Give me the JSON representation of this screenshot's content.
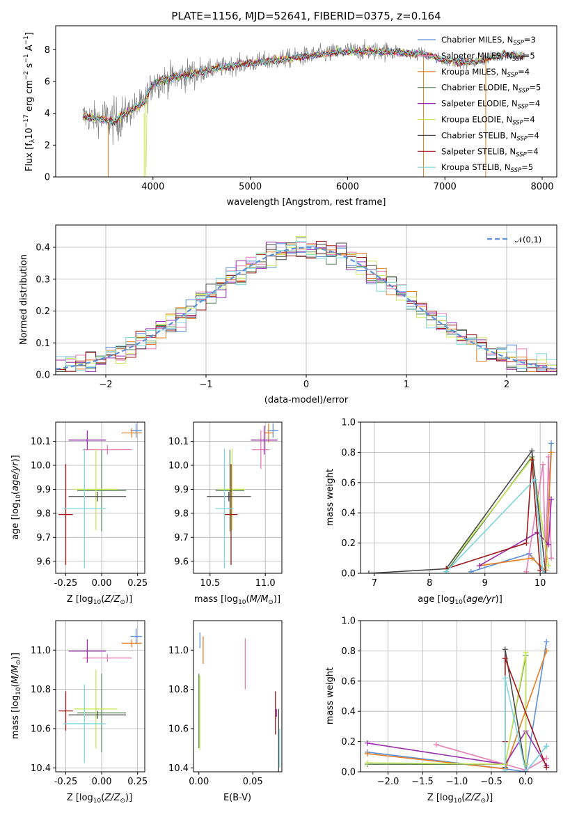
{
  "chart_data": [
    {
      "type": "line",
      "panel": "spectrum",
      "title": "PLATE=1156, MJD=52641, FIBERID=0375, z=0.164",
      "xlabel": "wavelength [Angstrom, rest frame]",
      "ylabel": "Flux [f_λ10^-17 erg cm^-2 s^-1 A^-1]",
      "xlim": [
        3000,
        8150
      ],
      "ylim": [
        0,
        9.5
      ],
      "xticks": [
        4000,
        5000,
        6000,
        7000,
        8000
      ],
      "yticks": [
        0,
        2,
        4,
        6,
        8
      ],
      "legend_position": "right",
      "observed_color": "#808080",
      "series": [
        {
          "name": "Chabrier MILES, N_SSP=3",
          "color": "#5b8fd8"
        },
        {
          "name": "Salpeter MILES, N_SSP=5",
          "color": "#e87fb5"
        },
        {
          "name": "Kroupa MILES, N_SSP=4",
          "color": "#e87d22"
        },
        {
          "name": "Chabrier ELODIE, N_SSP=5",
          "color": "#5a8a5a"
        },
        {
          "name": "Salpeter ELODIE, N_SSP=4",
          "color": "#9b2cb0"
        },
        {
          "name": "Kroupa ELODIE, N_SSP=4",
          "color": "#cbe85c"
        },
        {
          "name": "Chabrier STELIB, N_SSP=4",
          "color": "#4a4a4a"
        },
        {
          "name": "Salpeter STELIB, N_SSP=4",
          "color": "#a01818"
        },
        {
          "name": "Kroupa STELIB, N_SSP=5",
          "color": "#7fd6dc"
        }
      ],
      "continuum_x": [
        3300,
        3500,
        3600,
        3800,
        3900,
        4000,
        4200,
        4500,
        4800,
        5200,
        5600,
        6000,
        6400,
        6800,
        7000,
        7300,
        7600,
        7800
      ],
      "continuum_y": [
        3.8,
        3.6,
        3.5,
        4.3,
        4.6,
        5.9,
        6.2,
        6.6,
        7.0,
        7.3,
        7.6,
        7.9,
        7.9,
        7.7,
        7.3,
        7.2,
        7.7,
        7.6
      ]
    },
    {
      "type": "histogram",
      "panel": "residuals",
      "xlabel": "(data-model)/error",
      "ylabel": "Normed distribution",
      "xlim": [
        -2.5,
        2.5
      ],
      "ylim": [
        0,
        0.47
      ],
      "xticks": [
        -2,
        -1,
        0,
        1,
        2
      ],
      "yticks": [
        0.0,
        0.1,
        0.2,
        0.3,
        0.4
      ],
      "grid": true,
      "legend_position": "top-right",
      "reference_curve": {
        "name": "𝒩(0,1)",
        "color": "#5b8fd8",
        "style": "dashed"
      },
      "bin_edges": [
        -2.5,
        -2.4,
        -2.3,
        -2.2,
        -2.1,
        -2.0,
        -1.9,
        -1.8,
        -1.7,
        -1.6,
        -1.5,
        -1.4,
        -1.3,
        -1.2,
        -1.1,
        -1.0,
        -0.9,
        -0.8,
        -0.7,
        -0.6,
        -0.5,
        -0.4,
        -0.3,
        -0.2,
        -0.1,
        0.0,
        0.1,
        0.2,
        0.3,
        0.4,
        0.5,
        0.6,
        0.7,
        0.8,
        0.9,
        1.0,
        1.1,
        1.2,
        1.3,
        1.4,
        1.5,
        1.6,
        1.7,
        1.8,
        1.9,
        2.0,
        2.1,
        2.2,
        2.3,
        2.4,
        2.5
      ]
    },
    {
      "type": "error_bar",
      "panel": "age_vs_Z",
      "xlabel": "Z [log10(Z/Z⊙)]",
      "ylabel": "age  [log10(age/yr)]",
      "xlim": [
        -0.32,
        0.3
      ],
      "ylim": [
        9.55,
        10.18
      ],
      "xticks": [
        "-0.25",
        "0.00",
        "0.25"
      ],
      "yticks": [
        "9.6",
        "9.7",
        "9.8",
        "9.9",
        "10.0",
        "10.1"
      ],
      "grid": true,
      "points": [
        {
          "x": 0.24,
          "y": 10.145,
          "xerr": 0.04,
          "yerr": 0.03,
          "color": "#5b8fd8"
        },
        {
          "x": 0.04,
          "y": 10.065,
          "xerr": 0.17,
          "yerr": 0.0,
          "color": "#e87fb5"
        },
        {
          "x": 0.21,
          "y": 10.135,
          "xerr": 0.07,
          "yerr": 0.0,
          "color": "#e87d22"
        },
        {
          "x": 0.0,
          "y": 9.895,
          "xerr": 0.17,
          "yerr": 0.17,
          "color": "#5a8a5a"
        },
        {
          "x": -0.1,
          "y": 10.105,
          "xerr": 0.13,
          "yerr": 0.04,
          "color": "#9b2cb0"
        },
        {
          "x": -0.04,
          "y": 9.9,
          "xerr": 0.15,
          "yerr": 0.17,
          "color": "#cbe85c"
        },
        {
          "x": -0.03,
          "y": 9.87,
          "xerr": 0.2,
          "yerr": 0.0,
          "color": "#4a4a4a"
        },
        {
          "x": -0.25,
          "y": 9.795,
          "xerr": 0.05,
          "yerr": 0.21,
          "color": "#a01818"
        },
        {
          "x": -0.12,
          "y": 9.82,
          "xerr": 0.15,
          "yerr": 0.25,
          "color": "#7fd6dc"
        }
      ]
    },
    {
      "type": "error_bar",
      "panel": "age_vs_mass",
      "xlabel": "mass [log10(M/M⊙)]",
      "ylabel": "",
      "xlim": [
        10.35,
        11.15
      ],
      "ylim": [
        9.55,
        10.18
      ],
      "xticks": [
        "10.5",
        "11.0"
      ],
      "yticks": [
        "9.6",
        "9.7",
        "9.8",
        "9.9",
        "10.0",
        "10.1"
      ],
      "grid": true,
      "points": [
        {
          "x": 11.07,
          "y": 10.145,
          "xerr": 0.05,
          "yerr": 0.03,
          "color": "#5b8fd8"
        },
        {
          "x": 10.96,
          "y": 10.065,
          "xerr": 0.08,
          "yerr": 0.08,
          "color": "#e87fb5"
        },
        {
          "x": 11.03,
          "y": 10.135,
          "xerr": 0.04,
          "yerr": 0.04,
          "color": "#e87d22"
        },
        {
          "x": 10.68,
          "y": 9.895,
          "xerr": 0.13,
          "yerr": 0.17,
          "color": "#5a8a5a"
        },
        {
          "x": 10.99,
          "y": 10.105,
          "xerr": 0.12,
          "yerr": 0.06,
          "color": "#9b2cb0"
        },
        {
          "x": 10.7,
          "y": 9.9,
          "xerr": 0.12,
          "yerr": 0.17,
          "color": "#cbe85c"
        },
        {
          "x": 10.67,
          "y": 9.87,
          "xerr": 0.2,
          "yerr": 0.0,
          "color": "#4a4a4a"
        },
        {
          "x": 10.69,
          "y": 9.795,
          "xerr": 0.06,
          "yerr": 0.21,
          "color": "#a01818"
        },
        {
          "x": 10.63,
          "y": 9.82,
          "xerr": 0.08,
          "yerr": 0.25,
          "color": "#7fd6dc"
        }
      ]
    },
    {
      "type": "line",
      "panel": "weight_vs_age",
      "xlabel": "age  [log10(age/yr)]",
      "ylabel": "mass weight",
      "xlim": [
        6.75,
        10.3
      ],
      "ylim": [
        0,
        1.0
      ],
      "xticks": [
        "7",
        "8",
        "9",
        "10"
      ],
      "yticks": [
        "0.0",
        "0.2",
        "0.4",
        "0.6",
        "0.8",
        "1.0"
      ],
      "grid": true,
      "series": [
        {
          "color": "#5b8fd8",
          "x": [
            8.75,
            9.8,
            10.1,
            10.2
          ],
          "y": [
            0.01,
            0.13,
            0.0,
            0.86
          ]
        },
        {
          "color": "#e87fb5",
          "x": [
            9.75,
            10.05,
            10.1,
            10.15,
            10.2
          ],
          "y": [
            0.01,
            0.72,
            0.08,
            0.77,
            0.1
          ]
        },
        {
          "color": "#e87d22",
          "x": [
            8.9,
            9.85,
            10.1,
            10.2
          ],
          "y": [
            0.05,
            0.1,
            0.02,
            0.8
          ]
        },
        {
          "color": "#5a8a5a",
          "x": [
            8.3,
            9.85,
            10.15
          ],
          "y": [
            0.01,
            0.77,
            0.05
          ]
        },
        {
          "color": "#9b2cb0",
          "x": [
            8.9,
            9.95,
            10.15,
            10.2
          ],
          "y": [
            0.05,
            0.27,
            0.19,
            0.49
          ]
        },
        {
          "color": "#cbe85c",
          "x": [
            8.3,
            9.85,
            10.15
          ],
          "y": [
            0.03,
            0.76,
            0.05
          ]
        },
        {
          "color": "#4a4a4a",
          "x": [
            6.9,
            8.3,
            9.85,
            10.1
          ],
          "y": [
            0.0,
            0.03,
            0.81,
            0.0
          ]
        },
        {
          "color": "#a01818",
          "x": [
            8.3,
            9.75,
            9.85,
            10.0
          ],
          "y": [
            0.03,
            0.2,
            0.75,
            0.02
          ]
        },
        {
          "color": "#7fd6dc",
          "x": [
            8.3,
            9.9,
            10.05
          ],
          "y": [
            0.01,
            0.62,
            0.0
          ]
        }
      ]
    },
    {
      "type": "error_bar",
      "panel": "mass_vs_Z",
      "xlabel": "Z [log10(Z/Z⊙)]",
      "ylabel": "mass [log10(M/M⊙)]",
      "xlim": [
        -0.32,
        0.3
      ],
      "ylim": [
        10.38,
        11.15
      ],
      "xticks": [
        "-0.25",
        "0.00",
        "0.25"
      ],
      "yticks": [
        "10.4",
        "10.6",
        "10.8",
        "11.0"
      ],
      "grid": true,
      "points": [
        {
          "x": 0.24,
          "y": 11.07,
          "xerr": 0.04,
          "yerr": 0.04,
          "color": "#5b8fd8"
        },
        {
          "x": 0.04,
          "y": 10.96,
          "xerr": 0.17,
          "yerr": 0.0,
          "color": "#e87fb5"
        },
        {
          "x": 0.21,
          "y": 11.035,
          "xerr": 0.07,
          "yerr": 0.0,
          "color": "#e87d22"
        },
        {
          "x": 0.0,
          "y": 10.68,
          "xerr": 0.17,
          "yerr": 0.2,
          "color": "#5a8a5a"
        },
        {
          "x": -0.1,
          "y": 10.995,
          "xerr": 0.13,
          "yerr": 0.06,
          "color": "#9b2cb0"
        },
        {
          "x": -0.04,
          "y": 10.7,
          "xerr": 0.15,
          "yerr": 0.2,
          "color": "#cbe85c"
        },
        {
          "x": -0.03,
          "y": 10.67,
          "xerr": 0.2,
          "yerr": 0.0,
          "color": "#4a4a4a"
        },
        {
          "x": -0.25,
          "y": 10.69,
          "xerr": 0.05,
          "yerr": 0.1,
          "color": "#a01818"
        },
        {
          "x": -0.12,
          "y": 10.625,
          "xerr": 0.15,
          "yerr": 0.2,
          "color": "#7fd6dc"
        }
      ]
    },
    {
      "type": "error_bar",
      "panel": "mass_vs_EBV",
      "xlabel": "E(B-V)",
      "ylabel": "",
      "xlim": [
        -0.005,
        0.077
      ],
      "ylim": [
        10.38,
        11.15
      ],
      "xticks": [
        "0.00",
        "0.05"
      ],
      "yticks": [
        "10.4",
        "10.6",
        "10.8",
        "11.0"
      ],
      "grid": false,
      "points": [
        {
          "x": 0.001,
          "y": 11.05,
          "xerr": 0,
          "yerr": 0.04,
          "color": "#5b8fd8"
        },
        {
          "x": 0.043,
          "y": 10.93,
          "xerr": 0,
          "yerr": 0.13,
          "color": "#e87fb5"
        },
        {
          "x": 0.004,
          "y": 11.0,
          "xerr": 0,
          "yerr": 0.07,
          "color": "#e87d22"
        },
        {
          "x": 0.0,
          "y": 10.69,
          "xerr": 0,
          "yerr": 0.19,
          "color": "#5a8a5a"
        },
        {
          "x": 0.072,
          "y": 10.68,
          "xerr": 0,
          "yerr": 0.0,
          "color": "#9b2cb0"
        },
        {
          "x": 0.001,
          "y": 10.68,
          "xerr": 0,
          "yerr": 0.19,
          "color": "#cbe85c"
        },
        {
          "x": 0.074,
          "y": 10.53,
          "xerr": 0,
          "yerr": 0.17,
          "color": "#4a4a4a"
        },
        {
          "x": 0.071,
          "y": 10.68,
          "xerr": 0,
          "yerr": 0.11,
          "color": "#a01818"
        },
        {
          "x": 0.075,
          "y": 10.5,
          "xerr": 0,
          "yerr": 0.1,
          "color": "#7fd6dc"
        }
      ]
    },
    {
      "type": "line",
      "panel": "weight_vs_Z",
      "xlabel": "Z [log10(Z/Z⊙)]",
      "ylabel": "mass weight",
      "xlim": [
        -2.4,
        0.45
      ],
      "ylim": [
        0,
        1.0
      ],
      "xticks": [
        "−2.0",
        "−1.5",
        "−1.0",
        "−0.5",
        "0.0"
      ],
      "yticks": [
        "0.0",
        "0.2",
        "0.4",
        "0.6",
        "0.8",
        "1.0"
      ],
      "grid": true,
      "series": [
        {
          "color": "#5b8fd8",
          "x": [
            -2.3,
            -0.3,
            0.0,
            0.3,
            0.0,
            0.3
          ],
          "y": [
            0.13,
            0.02,
            0.0,
            0.86,
            0.0,
            0.17
          ]
        },
        {
          "color": "#e87fb5",
          "x": [
            -1.3,
            0.0,
            0.3,
            0.0
          ],
          "y": [
            0.18,
            0.01,
            0.09,
            0.01
          ]
        },
        {
          "color": "#e87d22",
          "x": [
            -2.3,
            -0.3,
            0.3
          ],
          "y": [
            0.12,
            0.02,
            0.8
          ]
        },
        {
          "color": "#5a8a5a",
          "x": [
            -2.3,
            -0.3,
            0.0,
            0.0
          ],
          "y": [
            0.05,
            0.05,
            0.77,
            0.05
          ]
        },
        {
          "color": "#9b2cb0",
          "x": [
            -2.3,
            -0.3,
            0.0,
            0.3
          ],
          "y": [
            0.19,
            0.05,
            0.27,
            0.04
          ]
        },
        {
          "color": "#cbe85c",
          "x": [
            -2.3,
            -0.3,
            0.0,
            0.0
          ],
          "y": [
            0.06,
            0.05,
            0.79,
            0.05
          ]
        },
        {
          "color": "#4a4a4a",
          "x": [
            -0.3,
            -0.3,
            0.0
          ],
          "y": [
            0.03,
            0.81,
            0.0
          ]
        },
        {
          "color": "#a01818",
          "x": [
            -0.3,
            -0.3,
            0.3
          ],
          "y": [
            0.2,
            0.75,
            0.03
          ]
        },
        {
          "color": "#7fd6dc",
          "x": [
            -0.3,
            -0.3,
            0.0,
            0.3
          ],
          "y": [
            0.01,
            0.62,
            0.0,
            0.17
          ]
        }
      ]
    }
  ]
}
